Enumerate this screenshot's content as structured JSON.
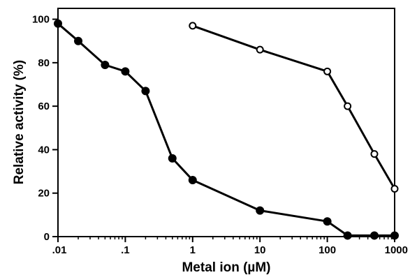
{
  "chart_data": {
    "type": "line",
    "title": "",
    "xlabel": "Metal ion (µM)",
    "ylabel": "Relative activity (%)",
    "xscale": "log",
    "xlim": [
      0.01,
      1000
    ],
    "ylim": [
      0,
      105
    ],
    "grid": false,
    "legend": "none",
    "xticks": [
      0.01,
      0.1,
      1,
      10,
      100,
      1000
    ],
    "xtick_labels": [
      ".01",
      ".1",
      "1",
      "10",
      "100",
      "1000"
    ],
    "yticks": [
      0,
      20,
      40,
      60,
      80,
      100
    ],
    "ytick_labels": [
      "0",
      "20",
      "40",
      "60",
      "80",
      "100"
    ],
    "series": [
      {
        "marker": "filled-circle",
        "color": "#000000",
        "x": [
          0.01,
          0.02,
          0.05,
          0.1,
          0.2,
          0.5,
          1,
          10,
          100,
          200,
          500,
          1000
        ],
        "y": [
          98,
          90,
          79,
          76,
          67,
          36,
          26,
          12,
          7,
          0.5,
          0.5,
          0.5
        ]
      },
      {
        "marker": "open-circle",
        "color": "#000000",
        "x": [
          1,
          10,
          100,
          200,
          500,
          1000
        ],
        "y": [
          97,
          86,
          76,
          60,
          38,
          22
        ]
      }
    ]
  }
}
